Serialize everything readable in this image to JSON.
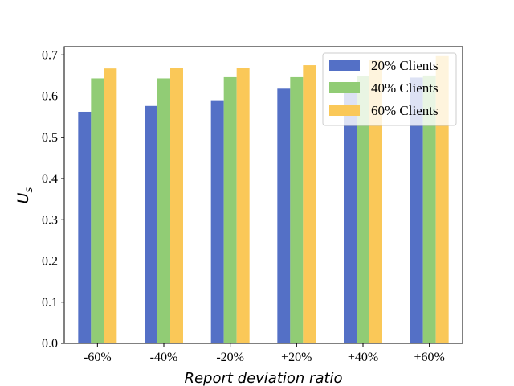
{
  "chart_data": {
    "type": "bar",
    "categories": [
      "-60%",
      "-40%",
      "-20%",
      "+20%",
      "+40%",
      "+60%"
    ],
    "series": [
      {
        "name": "20% Clients",
        "color": "#5470c6",
        "values": [
          0.562,
          0.576,
          0.59,
          0.618,
          0.633,
          0.645
        ]
      },
      {
        "name": "40% Clients",
        "color": "#91cc75",
        "values": [
          0.643,
          0.643,
          0.646,
          0.646,
          0.648,
          0.65
        ]
      },
      {
        "name": "60% Clients",
        "color": "#fac858",
        "values": [
          0.667,
          0.669,
          0.669,
          0.675,
          0.688,
          0.697
        ]
      }
    ],
    "xlabel": "Report deviation ratio",
    "ylabel": {
      "main": "U",
      "sub": "s"
    },
    "ylim": [
      0,
      0.72
    ],
    "yticks": [
      "0.0",
      "0.1",
      "0.2",
      "0.3",
      "0.4",
      "0.5",
      "0.6",
      "0.7"
    ],
    "legend_position": "top-right",
    "grid": false
  }
}
